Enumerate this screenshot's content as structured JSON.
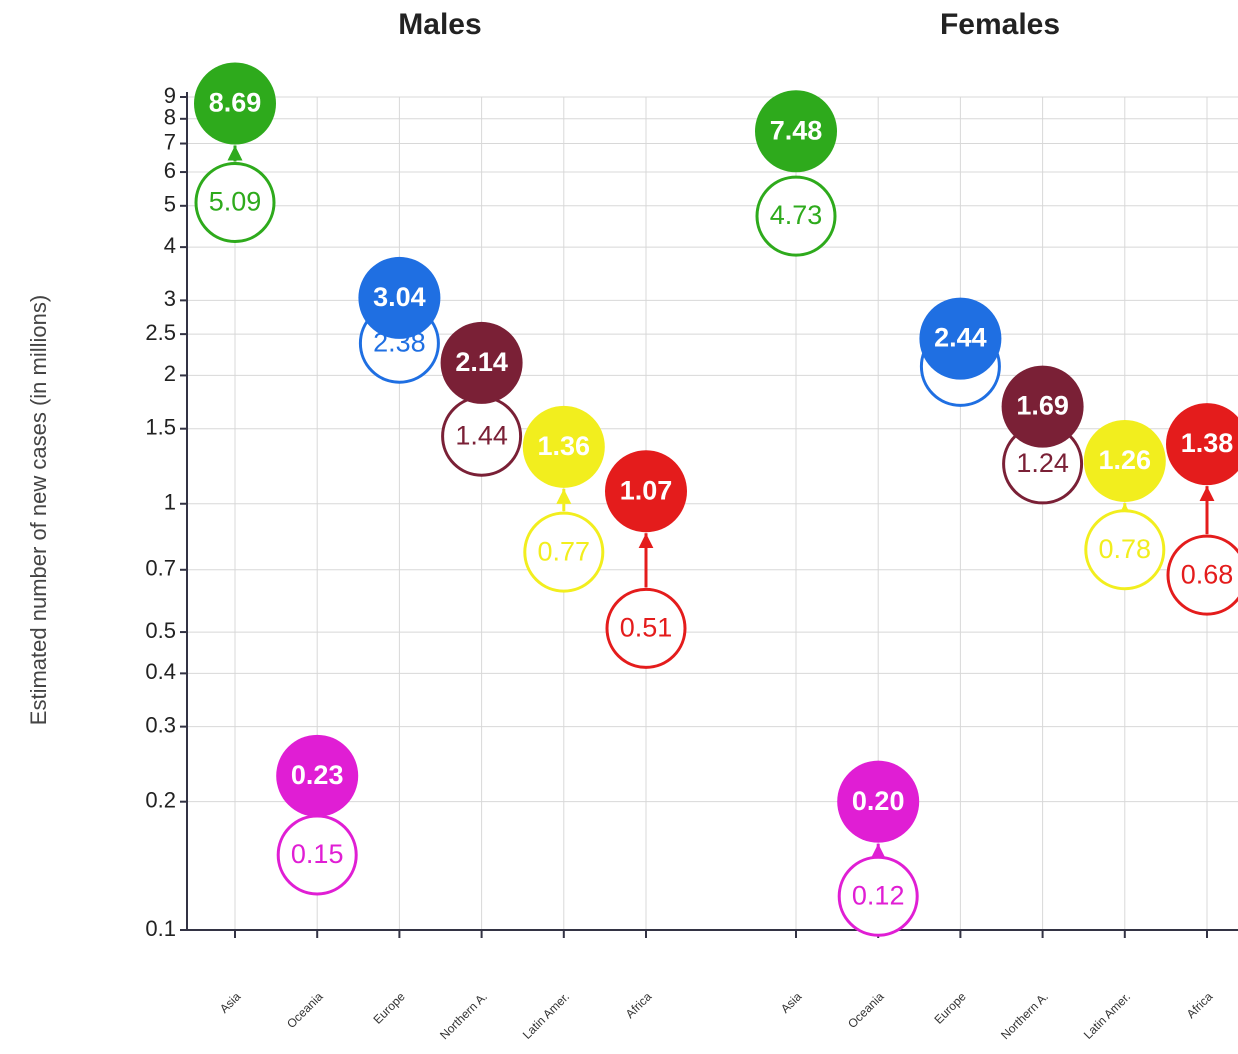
{
  "chart_data": {
    "type": "dumbbell",
    "ylabel": "Estimated number of new cases (in millions)",
    "log_scale": true,
    "grid": true,
    "ylim": [
      0.1,
      9
    ],
    "yticks": [
      0.1,
      0.2,
      0.3,
      0.4,
      0.5,
      0.7,
      1,
      1.5,
      2,
      2.5,
      3,
      4,
      5,
      6,
      7,
      8,
      9
    ],
    "colors": [
      "#2eaa1c",
      "#e01ed4",
      "#1f6fe2",
      "#7a2036",
      "#f2ee1e",
      "#e41c1c"
    ],
    "panels": [
      {
        "title": "Males",
        "categories": [
          "Asia",
          "Oceania",
          "Europe",
          "Northern A.",
          "Latin Amer.",
          "Africa"
        ],
        "end_values": [
          8.69,
          0.23,
          3.04,
          2.14,
          1.36,
          1.07
        ],
        "end_value_labels": [
          "8.69",
          "0.23",
          "3.04",
          "2.14",
          "1.36",
          "1.07"
        ],
        "start_values": [
          5.09,
          0.15,
          2.38,
          1.44,
          0.77,
          0.51
        ],
        "start_value_labels": [
          "5.09",
          "0.15",
          "2.38",
          "1.44",
          "0.77",
          "0.51"
        ]
      },
      {
        "title": "Females",
        "categories": [
          "Asia",
          "Oceania",
          "Europe",
          "Northern A.",
          "Latin Amer.",
          "Africa"
        ],
        "end_values": [
          7.48,
          0.2,
          2.44,
          1.69,
          1.26,
          1.38
        ],
        "end_value_labels": [
          "7.48",
          "0.20",
          "2.44",
          "1.69",
          "1.26",
          "1.38"
        ],
        "start_values": [
          4.73,
          0.12,
          2.1,
          1.24,
          0.78,
          0.68
        ],
        "start_value_labels": [
          "4.73",
          "0.12",
          null,
          "1.24",
          "0.78",
          "0.68"
        ]
      }
    ]
  }
}
